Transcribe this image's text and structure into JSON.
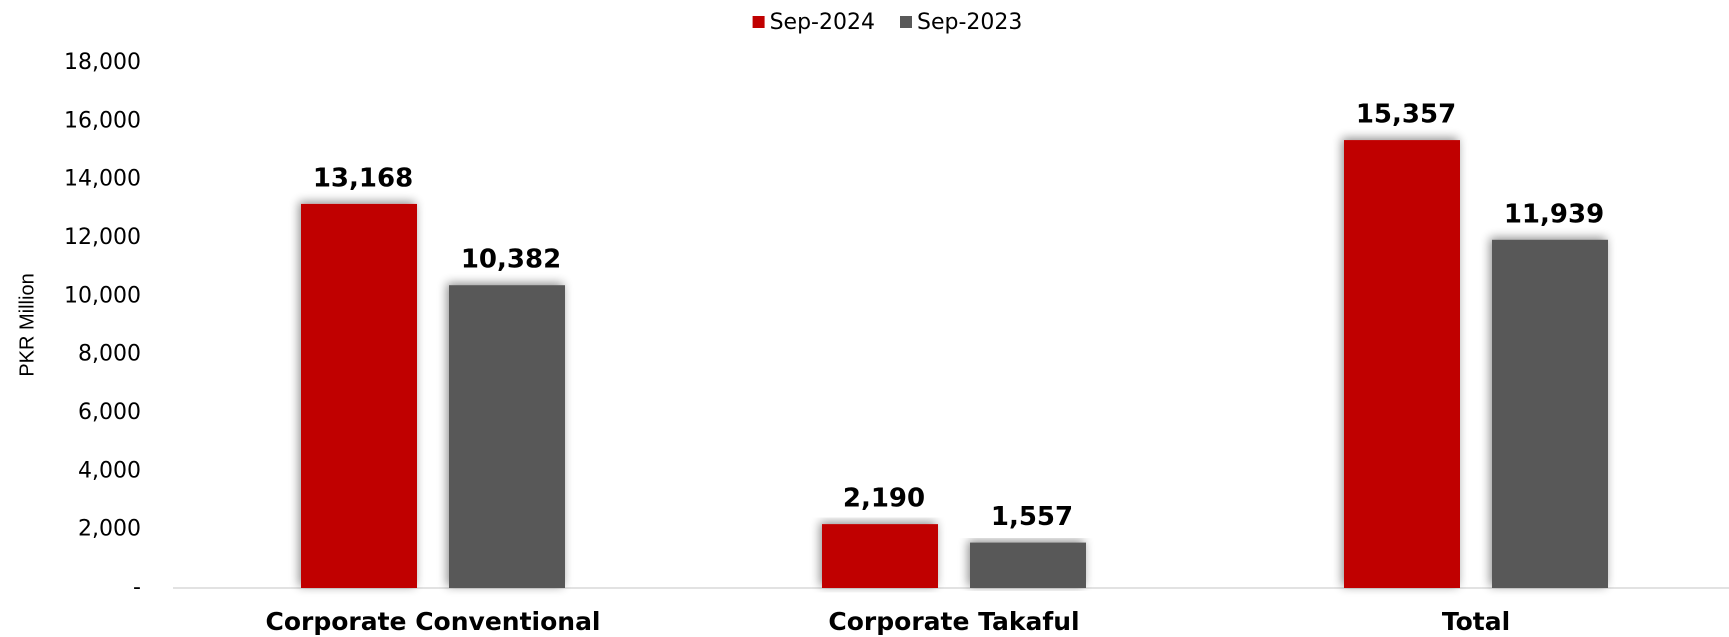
{
  "chart_data": {
    "type": "bar",
    "y_label": "PKR Million",
    "categories": [
      "Corporate Conventional",
      "Corporate Takaful",
      "Total"
    ],
    "series": [
      {
        "name": "Sep-2024",
        "color": "#c00000",
        "values": [
          13168,
          2190,
          15357
        ],
        "value_labels": [
          "13,168",
          "2,190",
          "15,357"
        ]
      },
      {
        "name": "Sep-2023",
        "color": "#595959",
        "values": [
          10382,
          1557,
          11939
        ],
        "value_labels": [
          "10,382",
          "1,557",
          "11,939"
        ]
      }
    ],
    "ylim": [
      0,
      18000
    ],
    "yticks": [
      {
        "value": 0,
        "label": "-"
      },
      {
        "value": 2000,
        "label": "2,000"
      },
      {
        "value": 4000,
        "label": "4,000"
      },
      {
        "value": 6000,
        "label": "6,000"
      },
      {
        "value": 8000,
        "label": "8,000"
      },
      {
        "value": 10000,
        "label": "10,000"
      },
      {
        "value": 12000,
        "label": "12,000"
      },
      {
        "value": 14000,
        "label": "14,000"
      },
      {
        "value": 16000,
        "label": "16,000"
      },
      {
        "value": 18000,
        "label": "18,000"
      }
    ],
    "legend": "top",
    "grid": false
  }
}
